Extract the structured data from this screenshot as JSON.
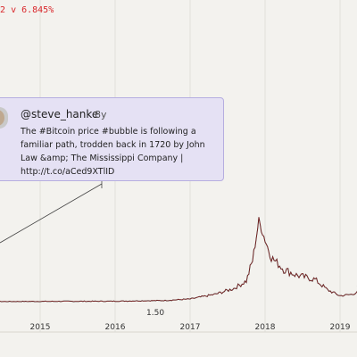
{
  "header": {
    "value_prefix": "2",
    "change_text": "v 6.845%"
  },
  "tweet": {
    "handle": "@steve_hanke",
    "age": "8y",
    "text": "The #Bitcoin price #bubble is following a familiar path, trodden back in 1720 by John Law &amp; The Mississippi Company | http://t.co/aCed9XTlID"
  },
  "price_label": "1.50",
  "colors": {
    "line": "#1a1a1a",
    "highlight": "#cc2b2b",
    "tweet_bg": "#e5e1f4",
    "tweet_border": "#b6aee0"
  },
  "chart_data": {
    "type": "line",
    "x_ticks": [
      "2015",
      "2016",
      "2017",
      "2018",
      "2019"
    ],
    "series": [
      {
        "values": [
          [
            "2014-01",
            0.0
          ],
          [
            "2015-01",
            0.2
          ],
          [
            "2016-01",
            0.3
          ],
          [
            "2016-09",
            0.8
          ],
          [
            "2017-01",
            1.8
          ],
          [
            "2017-05",
            5
          ],
          [
            "2017-08",
            9
          ],
          [
            "2017-10",
            14
          ],
          [
            "2017-11",
            28
          ],
          [
            "2017-12",
            55
          ],
          [
            "2018-01",
            42
          ],
          [
            "2018-02",
            30
          ],
          [
            "2018-04",
            22
          ],
          [
            "2018-06",
            18
          ],
          [
            "2018-09",
            15
          ],
          [
            "2018-11",
            8
          ],
          [
            "2019-01",
            4
          ],
          [
            "2019-03",
            5
          ],
          [
            "2019-05",
            10
          ]
        ]
      }
    ]
  }
}
